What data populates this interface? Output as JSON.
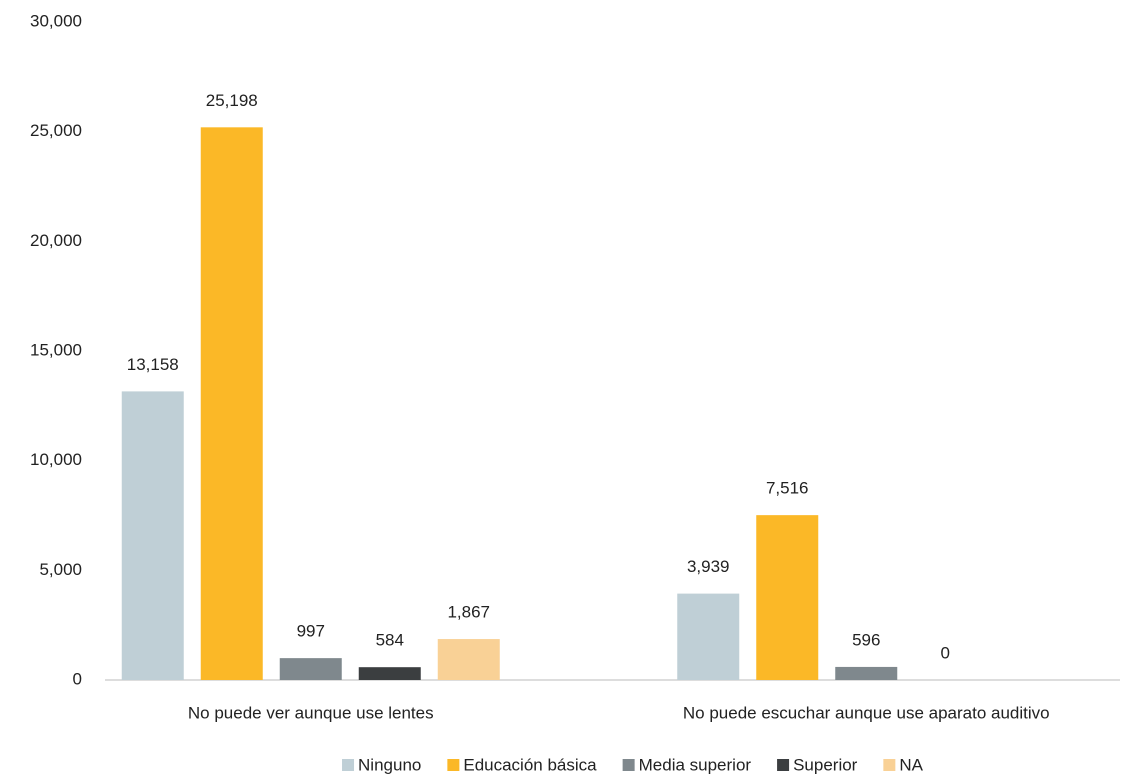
{
  "chart_data": {
    "type": "bar",
    "categories": [
      "No puede ver aunque use lentes",
      "No puede escuchar aunque use aparato auditivo"
    ],
    "series": [
      {
        "name": "Ninguno",
        "color": "#bfcfd6",
        "values": [
          13158,
          3939
        ],
        "value_labels": [
          "13,158",
          "3,939"
        ]
      },
      {
        "name": "Educación básica",
        "color": "#fbb827",
        "values": [
          25198,
          7516
        ],
        "value_labels": [
          "25,198",
          "7,516"
        ]
      },
      {
        "name": "Media superior",
        "color": "#7f888d",
        "values": [
          997,
          596
        ],
        "value_labels": [
          "997",
          "596"
        ]
      },
      {
        "name": "Superior",
        "color": "#3b3e40",
        "values": [
          584,
          0
        ],
        "value_labels": [
          "584",
          "0"
        ]
      },
      {
        "name": "NA",
        "color": "#f9d196",
        "values": [
          1867,
          null
        ],
        "value_labels": [
          "1,867",
          null
        ]
      }
    ],
    "ylim": [
      0,
      30000
    ],
    "yticks": [
      0,
      {
        "value": 5000,
        "label": "5,000"
      },
      {
        "value": 10000,
        "label": "10,000"
      },
      {
        "value": 15000,
        "label": "15,000"
      },
      {
        "value": 20000,
        "label": "20,000"
      },
      {
        "value": 25000,
        "label": "25,000"
      },
      {
        "value": 30000,
        "label": "30,000"
      }
    ],
    "grid": false,
    "legend": "bottom"
  }
}
